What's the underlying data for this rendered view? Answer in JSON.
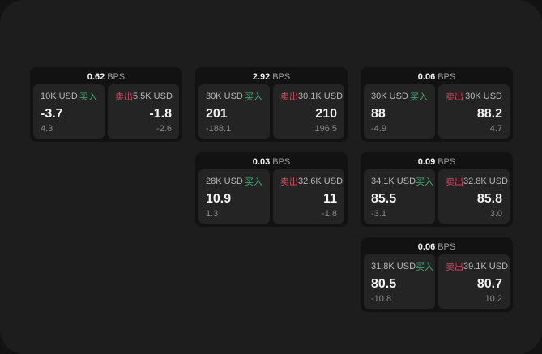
{
  "labels": {
    "buy": "买入",
    "sell": "卖出",
    "bps_unit": "BPS"
  },
  "colors": {
    "background": "#131313",
    "surface": "#1d1d1d",
    "card": "#121212",
    "subcard": "#242424",
    "buy_green": "#3fae75",
    "sell_red": "#cf4b63"
  },
  "cards": [
    {
      "bps": "0.62",
      "buy": {
        "size": "10K USD",
        "value": "-3.7",
        "sub": "4.3"
      },
      "sell": {
        "size": "5.5K USD",
        "value": "-1.8",
        "sub": "-2.6"
      }
    },
    {
      "bps": "2.92",
      "buy": {
        "size": "30K USD",
        "value": "201",
        "sub": "-188.1"
      },
      "sell": {
        "size": "30.1K USD",
        "value": "210",
        "sub": "196.5"
      }
    },
    {
      "bps": "0.06",
      "buy": {
        "size": "30K USD",
        "value": "88",
        "sub": "-4.9"
      },
      "sell": {
        "size": "30K USD",
        "value": "88.2",
        "sub": "4.7"
      }
    },
    {
      "bps": "0.03",
      "buy": {
        "size": "28K USD",
        "value": "10.9",
        "sub": "1.3"
      },
      "sell": {
        "size": "32.6K USD",
        "value": "11",
        "sub": "-1.8"
      }
    },
    {
      "bps": "0.09",
      "buy": {
        "size": "34.1K USD",
        "value": "85.5",
        "sub": "-3.1"
      },
      "sell": {
        "size": "32.8K USD",
        "value": "85.8",
        "sub": "3.0"
      }
    },
    {
      "bps": "0.06",
      "buy": {
        "size": "31.8K USD",
        "value": "80.5",
        "sub": "-10.8"
      },
      "sell": {
        "size": "39.1K USD",
        "value": "80.7",
        "sub": "10.2"
      }
    }
  ]
}
